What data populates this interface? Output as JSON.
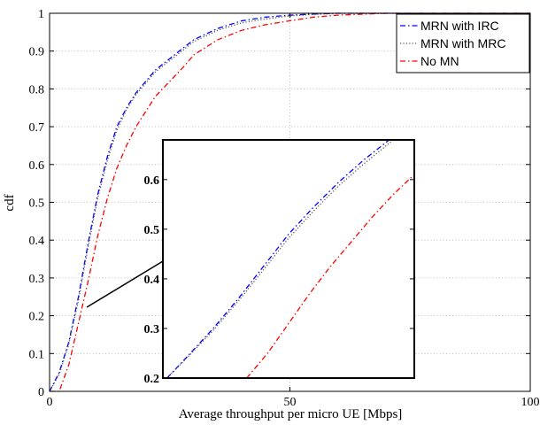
{
  "chart_data": {
    "type": "line",
    "title": "",
    "xlabel": "Average throughput per micro UE [Mbps]",
    "ylabel": "cdf",
    "xlim": [
      0,
      100
    ],
    "ylim": [
      0,
      1
    ],
    "xticks": [
      "0",
      "50",
      "100"
    ],
    "yticks": [
      "0",
      "0.1",
      "0.2",
      "0.3",
      "0.4",
      "0.5",
      "0.6",
      "0.7",
      "0.8",
      "0.9",
      "1"
    ],
    "grid": true,
    "legend_position": "top-right",
    "series": [
      {
        "name": "MRN with IRC",
        "color": "#0000ff",
        "style": "dashdot",
        "x": [
          0,
          2,
          4,
          6,
          8,
          10,
          12,
          14,
          16,
          18,
          20,
          22,
          25,
          28,
          30,
          35,
          40,
          45,
          50,
          55,
          60,
          70,
          80,
          100
        ],
        "y": [
          0,
          0.05,
          0.13,
          0.25,
          0.39,
          0.52,
          0.62,
          0.7,
          0.75,
          0.79,
          0.82,
          0.85,
          0.88,
          0.91,
          0.93,
          0.96,
          0.98,
          0.99,
          0.995,
          0.998,
          1.0,
          1.0,
          1.0,
          1.0
        ]
      },
      {
        "name": "MRN with MRC",
        "color": "#555555",
        "style": "dotted",
        "x": [
          0,
          2,
          4,
          6,
          8,
          10,
          12,
          14,
          16,
          18,
          20,
          22,
          25,
          28,
          30,
          35,
          40,
          45,
          50,
          55,
          60,
          70,
          80,
          100
        ],
        "y": [
          0,
          0.045,
          0.125,
          0.24,
          0.38,
          0.51,
          0.61,
          0.69,
          0.745,
          0.785,
          0.815,
          0.845,
          0.875,
          0.905,
          0.925,
          0.955,
          0.975,
          0.985,
          0.993,
          0.997,
          1.0,
          1.0,
          1.0,
          1.0
        ]
      },
      {
        "name": "No MN",
        "color": "#ff0000",
        "style": "dashdot",
        "x": [
          0,
          2,
          4,
          6,
          8,
          10,
          12,
          14,
          16,
          18,
          20,
          22,
          25,
          28,
          30,
          35,
          40,
          45,
          50,
          55,
          60,
          70,
          80,
          100
        ],
        "y": [
          0,
          0.0,
          0.07,
          0.18,
          0.29,
          0.41,
          0.51,
          0.59,
          0.65,
          0.7,
          0.74,
          0.78,
          0.82,
          0.86,
          0.89,
          0.93,
          0.955,
          0.97,
          0.98,
          0.99,
          0.995,
          1.0,
          1.0,
          1.0
        ]
      }
    ],
    "inset": {
      "xlim": [
        7,
        10
      ],
      "ylim": [
        0.2,
        0.68
      ],
      "yticks": [
        "0.2",
        "0.3",
        "0.4",
        "0.5",
        "0.6"
      ],
      "grid": false,
      "series": [
        {
          "name": "MRN with IRC",
          "x": [
            7.05,
            7.3,
            7.6,
            7.9,
            8.2,
            8.5,
            8.8,
            9.1,
            9.4,
            9.7
          ],
          "y": [
            0.2,
            0.245,
            0.3,
            0.36,
            0.425,
            0.49,
            0.545,
            0.595,
            0.64,
            0.68
          ]
        },
        {
          "name": "MRN with MRC",
          "x": [
            7.05,
            7.3,
            7.6,
            7.9,
            8.2,
            8.5,
            8.8,
            9.1,
            9.4,
            9.75
          ],
          "y": [
            0.2,
            0.243,
            0.296,
            0.355,
            0.418,
            0.482,
            0.537,
            0.588,
            0.632,
            0.68
          ]
        },
        {
          "name": "No MN",
          "x": [
            8.0,
            8.25,
            8.5,
            8.75,
            9.0,
            9.25,
            9.5,
            9.75,
            10.0
          ],
          "y": [
            0.2,
            0.25,
            0.31,
            0.37,
            0.425,
            0.475,
            0.525,
            0.57,
            0.61
          ]
        }
      ]
    }
  }
}
